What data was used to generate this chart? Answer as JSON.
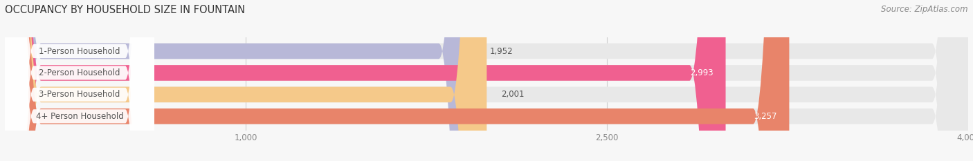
{
  "title": "OCCUPANCY BY HOUSEHOLD SIZE IN FOUNTAIN",
  "source": "Source: ZipAtlas.com",
  "categories": [
    "1-Person Household",
    "2-Person Household",
    "3-Person Household",
    "4+ Person Household"
  ],
  "values": [
    1952,
    2993,
    2001,
    3257
  ],
  "bar_colors": [
    "#b8b8d8",
    "#f06090",
    "#f5c98a",
    "#e8846a"
  ],
  "bar_bg_color": "#e8e8e8",
  "value_inside": [
    false,
    true,
    false,
    true
  ],
  "xlim_data": [
    0,
    4000
  ],
  "xticks": [
    1000,
    2500,
    4000
  ],
  "bar_height": 0.72,
  "figsize": [
    14.06,
    2.33
  ],
  "dpi": 100,
  "title_fontsize": 10.5,
  "label_fontsize": 8.5,
  "value_fontsize": 8.5,
  "source_fontsize": 8.5,
  "bg_color": "#f7f7f7",
  "grid_color": "#d0d0d0",
  "text_color": "#555555",
  "value_inside_color": "#ffffff",
  "value_outside_color": "#555555"
}
